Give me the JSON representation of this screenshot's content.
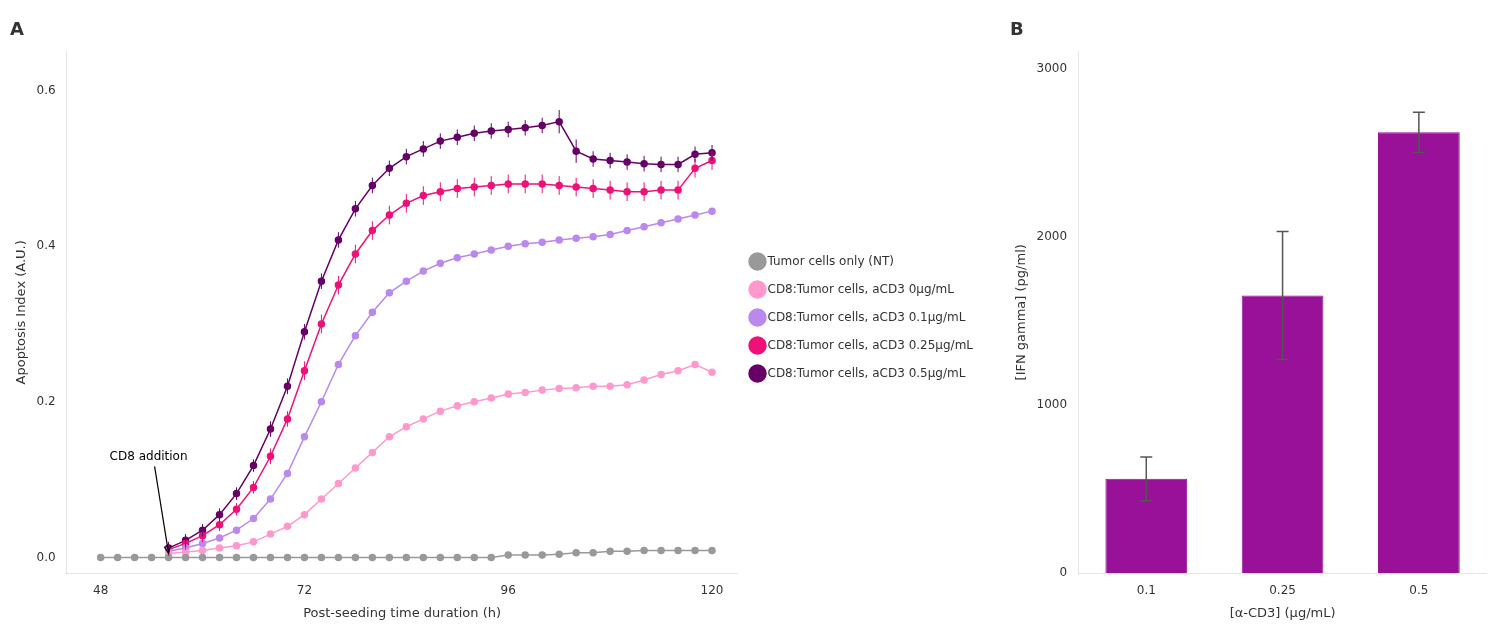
{
  "chart_data": [
    {
      "type": "line",
      "title": "A",
      "xlabel": "Post-seeding time duration (h)",
      "ylabel": "Apoptosis Index (A.U.)",
      "xlim": [
        44,
        123
      ],
      "xticks": [
        48,
        72,
        96,
        120
      ],
      "ylim": [
        -0.02,
        0.65
      ],
      "yticks": [
        {
          "value": 0.0,
          "label": "0.0"
        },
        0.2,
        0.4,
        0.6
      ],
      "grid": false,
      "legend": "right",
      "marker": "circle",
      "annotations": [
        {
          "text": "CD8 addition",
          "x": 56,
          "y": 0.0
        }
      ],
      "series": [
        {
          "name": "Tumor cells only (NT)",
          "color": "#999999",
          "x": [
            48,
            50,
            52,
            54,
            56,
            58,
            60,
            62,
            64,
            66,
            68,
            70,
            72,
            74,
            76,
            78,
            80,
            82,
            84,
            86,
            88,
            90,
            92,
            94,
            96,
            98,
            100,
            102,
            104,
            106,
            108,
            110,
            112,
            114,
            116,
            118,
            120
          ],
          "values": [
            0.0,
            0.0,
            0.0,
            0.0,
            0.0,
            0.0,
            0.0,
            0.0,
            0.0,
            0.0,
            0.0,
            0.0,
            0.0,
            0.0,
            0.0,
            0.0,
            0.0,
            0.0,
            0.0,
            0.0,
            0.0,
            0.0,
            0.0,
            0.0,
            0.003,
            0.003,
            0.003,
            0.004,
            0.006,
            0.006,
            0.008,
            0.008,
            0.009,
            0.009,
            0.009,
            0.009,
            0.009
          ],
          "yerr": [
            0.001,
            0.001,
            0.001,
            0.001,
            0.001,
            0.001,
            0.001,
            0.001,
            0.001,
            0.001,
            0.001,
            0.001,
            0.001,
            0.001,
            0.001,
            0.001,
            0.001,
            0.001,
            0.001,
            0.001,
            0.001,
            0.001,
            0.001,
            0.001,
            0.001,
            0.001,
            0.001,
            0.001,
            0.001,
            0.001,
            0.001,
            0.001,
            0.001,
            0.001,
            0.001,
            0.001,
            0.001
          ]
        },
        {
          "name": "CD8:Tumor cells, aCD3 0µg/mL",
          "color": "#FF99CC",
          "x": [
            56,
            58,
            60,
            62,
            64,
            66,
            68,
            70,
            72,
            74,
            76,
            78,
            80,
            82,
            84,
            86,
            88,
            90,
            92,
            94,
            96,
            98,
            100,
            102,
            104,
            106,
            108,
            110,
            112,
            114,
            116,
            118,
            120
          ],
          "values": [
            0.005,
            0.007,
            0.009,
            0.012,
            0.015,
            0.02,
            0.03,
            0.04,
            0.055,
            0.075,
            0.095,
            0.115,
            0.135,
            0.155,
            0.168,
            0.178,
            0.188,
            0.195,
            0.2,
            0.205,
            0.21,
            0.212,
            0.215,
            0.217,
            0.218,
            0.22,
            0.22,
            0.222,
            0.228,
            0.235,
            0.24,
            0.248,
            0.238
          ],
          "yerr": [
            0.003,
            0.003,
            0.003,
            0.003,
            0.003,
            0.003,
            0.003,
            0.003,
            0.003,
            0.003,
            0.003,
            0.003,
            0.003,
            0.003,
            0.003,
            0.003,
            0.003,
            0.003,
            0.003,
            0.003,
            0.003,
            0.003,
            0.003,
            0.003,
            0.003,
            0.003,
            0.003,
            0.003,
            0.003,
            0.003,
            0.003,
            0.003,
            0.003
          ]
        },
        {
          "name": "CD8:Tumor cells, aCD3 0.1µg/mL",
          "color": "#BB88EE",
          "x": [
            56,
            58,
            60,
            62,
            64,
            66,
            68,
            70,
            72,
            74,
            76,
            78,
            80,
            82,
            84,
            86,
            88,
            90,
            92,
            94,
            96,
            98,
            100,
            102,
            104,
            106,
            108,
            110,
            112,
            114,
            116,
            118,
            120
          ],
          "values": [
            0.008,
            0.012,
            0.018,
            0.025,
            0.035,
            0.05,
            0.075,
            0.108,
            0.155,
            0.2,
            0.248,
            0.285,
            0.315,
            0.34,
            0.355,
            0.368,
            0.378,
            0.385,
            0.39,
            0.395,
            0.4,
            0.403,
            0.405,
            0.408,
            0.41,
            0.412,
            0.415,
            0.42,
            0.425,
            0.43,
            0.435,
            0.44,
            0.445
          ],
          "yerr": [
            0.004,
            0.004,
            0.004,
            0.004,
            0.004,
            0.004,
            0.004,
            0.004,
            0.004,
            0.004,
            0.004,
            0.004,
            0.004,
            0.004,
            0.004,
            0.004,
            0.004,
            0.004,
            0.004,
            0.004,
            0.004,
            0.004,
            0.004,
            0.004,
            0.004,
            0.004,
            0.004,
            0.004,
            0.004,
            0.004,
            0.004,
            0.004,
            0.004
          ]
        },
        {
          "name": "CD8:Tumor cells, aCD3 0.25µg/mL",
          "color": "#EE1177",
          "x": [
            56,
            58,
            60,
            62,
            64,
            66,
            68,
            70,
            72,
            74,
            76,
            78,
            80,
            82,
            84,
            86,
            88,
            90,
            92,
            94,
            96,
            98,
            100,
            102,
            104,
            106,
            108,
            110,
            112,
            114,
            116,
            118,
            120
          ],
          "values": [
            0.01,
            0.018,
            0.028,
            0.042,
            0.062,
            0.09,
            0.13,
            0.178,
            0.24,
            0.3,
            0.35,
            0.39,
            0.42,
            0.44,
            0.455,
            0.465,
            0.47,
            0.474,
            0.476,
            0.478,
            0.48,
            0.48,
            0.48,
            0.478,
            0.476,
            0.474,
            0.472,
            0.47,
            0.47,
            0.472,
            0.472,
            0.5,
            0.51
          ],
          "yerr": [
            0.008,
            0.008,
            0.008,
            0.008,
            0.008,
            0.008,
            0.01,
            0.01,
            0.012,
            0.012,
            0.012,
            0.012,
            0.012,
            0.012,
            0.012,
            0.012,
            0.012,
            0.012,
            0.012,
            0.012,
            0.012,
            0.012,
            0.012,
            0.012,
            0.012,
            0.012,
            0.012,
            0.012,
            0.012,
            0.012,
            0.012,
            0.012,
            0.012
          ]
        },
        {
          "name": "CD8:Tumor cells, aCD3 0.5µg/mL",
          "color": "#660066",
          "x": [
            56,
            58,
            60,
            62,
            64,
            66,
            68,
            70,
            72,
            74,
            76,
            78,
            80,
            82,
            84,
            86,
            88,
            90,
            92,
            94,
            96,
            98,
            100,
            102,
            104,
            106,
            108,
            110,
            112,
            114,
            116,
            118,
            120
          ],
          "values": [
            0.012,
            0.022,
            0.035,
            0.055,
            0.082,
            0.118,
            0.165,
            0.22,
            0.29,
            0.355,
            0.408,
            0.448,
            0.478,
            0.5,
            0.515,
            0.525,
            0.535,
            0.54,
            0.545,
            0.548,
            0.55,
            0.552,
            0.555,
            0.56,
            0.522,
            0.512,
            0.51,
            0.508,
            0.506,
            0.505,
            0.505,
            0.518,
            0.52
          ],
          "yerr": [
            0.008,
            0.008,
            0.008,
            0.008,
            0.008,
            0.008,
            0.01,
            0.01,
            0.01,
            0.01,
            0.01,
            0.01,
            0.01,
            0.01,
            0.01,
            0.01,
            0.01,
            0.01,
            0.01,
            0.01,
            0.01,
            0.01,
            0.01,
            0.015,
            0.015,
            0.01,
            0.01,
            0.01,
            0.01,
            0.01,
            0.01,
            0.01,
            0.01
          ]
        }
      ]
    },
    {
      "type": "bar",
      "title": "B",
      "xlabel": "[α-CD3] (µg/mL)",
      "ylabel": "[IFN gamma] (pg/ml)",
      "categories": [
        "0.1",
        "0.25",
        "0.5"
      ],
      "values": [
        560,
        1650,
        2620
      ],
      "yerr": [
        130,
        380,
        120
      ],
      "color": "#991199",
      "ylim": [
        0,
        3100
      ],
      "yticks": [
        0,
        1000,
        2000,
        3000
      ],
      "grid": false
    }
  ]
}
